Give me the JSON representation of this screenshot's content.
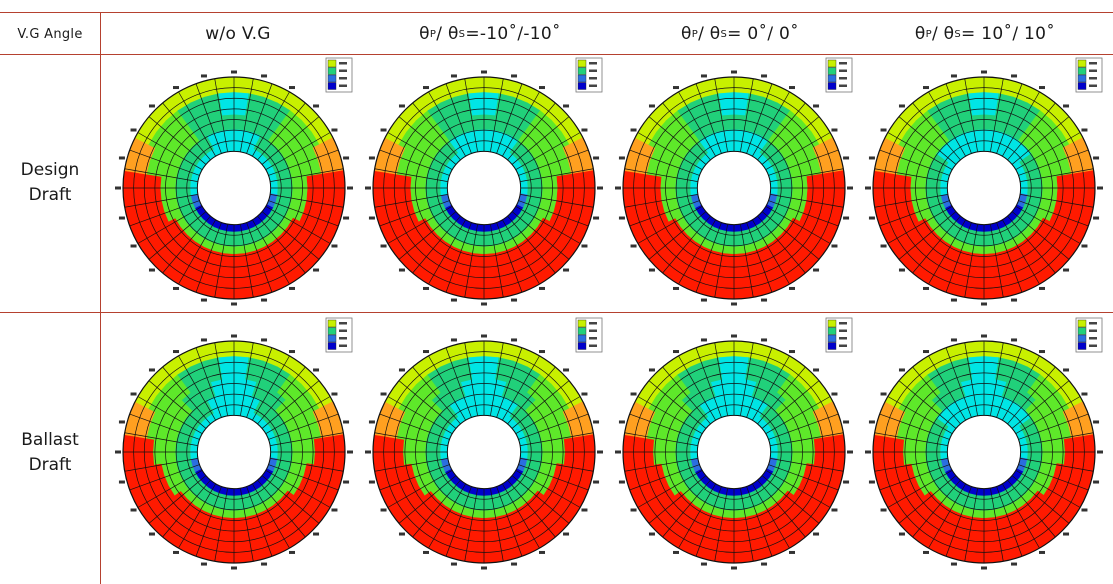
{
  "header": {
    "corner": "V.G Angle",
    "columns": [
      {
        "main": "w/o V.G",
        "sym": "",
        "subP": "",
        "mid": "",
        "subS": "",
        "tail": ""
      },
      {
        "main": "",
        "sym": "θ",
        "subP": "P",
        "mid": " / θ",
        "subS": "S",
        "tail": " =-10˚/-10˚"
      },
      {
        "main": "",
        "sym": "θ",
        "subP": "P",
        "mid": " / θ",
        "subS": "S",
        "tail": " = 0˚/ 0˚"
      },
      {
        "main": "",
        "sym": "θ",
        "subP": "P",
        "mid": " / θ",
        "subS": "S",
        "tail": " = 10˚/ 10˚"
      }
    ]
  },
  "rows": [
    {
      "label_line1": "Design",
      "label_line2": "Draft"
    },
    {
      "label_line1": "Ballast",
      "label_line2": "Draft"
    }
  ],
  "colors": {
    "rule": "#b5412f",
    "contour": [
      "#0000cc",
      "#2a6ee0",
      "#00e5e5",
      "#21d07a",
      "#5ee82a",
      "#c8f000",
      "#ffa020",
      "#ff1a00"
    ]
  }
}
